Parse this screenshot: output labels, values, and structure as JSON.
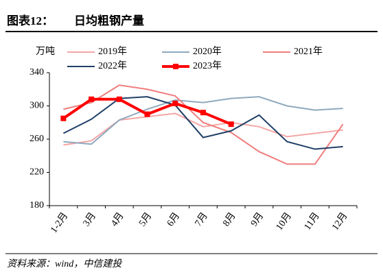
{
  "chart_data": {
    "type": "line",
    "title_prefix": "图表12：",
    "title": "日均粗钢产量",
    "y_unit": "万吨",
    "source": "资料来源：wind，中信建投",
    "categories": [
      "1-2月",
      "3月",
      "4月",
      "5月",
      "6月",
      "7月",
      "8月",
      "9月",
      "10月",
      "11月",
      "12月"
    ],
    "series": [
      {
        "name": "2019年",
        "color": "#f4a6a6",
        "width": 2,
        "values": [
          253,
          258,
          283,
          287,
          291,
          275,
          280,
          275,
          263,
          267,
          271
        ]
      },
      {
        "name": "2020年",
        "color": "#8ea9bd",
        "width": 2,
        "values": [
          257,
          254,
          283,
          296,
          307,
          304,
          309,
          311,
          300,
          295,
          297
        ]
      },
      {
        "name": "2021年",
        "color": "#ef7d7d",
        "width": 2,
        "values": [
          296,
          304,
          325,
          320,
          312,
          280,
          268,
          245,
          230,
          230,
          278
        ]
      },
      {
        "name": "2022年",
        "color": "#1f3f66",
        "width": 2,
        "values": [
          267,
          284,
          309,
          311,
          301,
          262,
          270,
          289,
          257,
          248,
          251
        ]
      },
      {
        "name": "2023年",
        "color": "#ff0000",
        "width": 4,
        "marker": true,
        "values": [
          285,
          308,
          308,
          290,
          303,
          292,
          278,
          null,
          null,
          null,
          null
        ]
      }
    ],
    "ylim": [
      180,
      340
    ],
    "yticks": [
      180,
      220,
      260,
      300,
      340
    ],
    "grid": false
  }
}
